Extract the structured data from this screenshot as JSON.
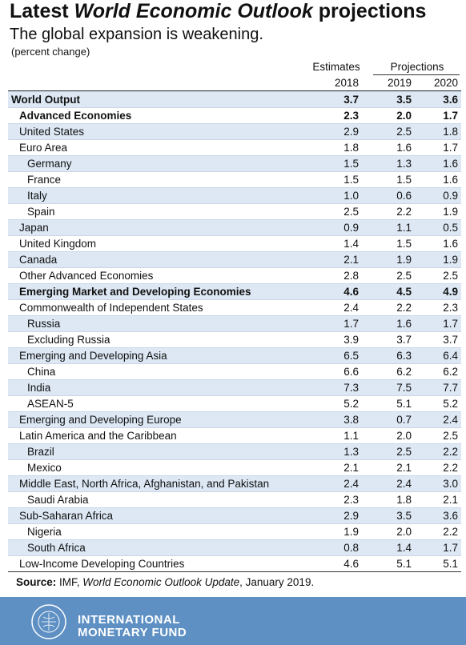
{
  "header": {
    "title": {
      "prefix": "Latest",
      "italic": "World Economic Outlook",
      "suffix": "projections"
    },
    "subtitle": "The global expansion is weakening.",
    "note": "(percent change)"
  },
  "table": {
    "group_headers": [
      "Estimates",
      "Projections"
    ],
    "years": [
      "2018",
      "2019",
      "2020"
    ],
    "rows": [
      {
        "label": "World Output",
        "indent": 0,
        "bold": true,
        "values": [
          "3.7",
          "3.5",
          "3.6"
        ]
      },
      {
        "label": "Advanced Economies",
        "indent": 1,
        "bold": true,
        "values": [
          "2.3",
          "2.0",
          "1.7"
        ]
      },
      {
        "label": "United States",
        "indent": 1,
        "bold": false,
        "values": [
          "2.9",
          "2.5",
          "1.8"
        ]
      },
      {
        "label": "Euro Area",
        "indent": 1,
        "bold": false,
        "values": [
          "1.8",
          "1.6",
          "1.7"
        ]
      },
      {
        "label": "Germany",
        "indent": 2,
        "bold": false,
        "values": [
          "1.5",
          "1.3",
          "1.6"
        ]
      },
      {
        "label": "France",
        "indent": 2,
        "bold": false,
        "values": [
          "1.5",
          "1.5",
          "1.6"
        ]
      },
      {
        "label": "Italy",
        "indent": 2,
        "bold": false,
        "values": [
          "1.0",
          "0.6",
          "0.9"
        ]
      },
      {
        "label": "Spain",
        "indent": 2,
        "bold": false,
        "values": [
          "2.5",
          "2.2",
          "1.9"
        ]
      },
      {
        "label": "Japan",
        "indent": 1,
        "bold": false,
        "values": [
          "0.9",
          "1.1",
          "0.5"
        ]
      },
      {
        "label": "United Kingdom",
        "indent": 1,
        "bold": false,
        "values": [
          "1.4",
          "1.5",
          "1.6"
        ]
      },
      {
        "label": "Canada",
        "indent": 1,
        "bold": false,
        "values": [
          "2.1",
          "1.9",
          "1.9"
        ]
      },
      {
        "label": "Other Advanced Economies",
        "indent": 1,
        "bold": false,
        "values": [
          "2.8",
          "2.5",
          "2.5"
        ]
      },
      {
        "label": "Emerging Market and Developing Economies",
        "indent": 1,
        "bold": true,
        "values": [
          "4.6",
          "4.5",
          "4.9"
        ]
      },
      {
        "label": "Commonwealth of Independent States",
        "indent": 1,
        "bold": false,
        "values": [
          "2.4",
          "2.2",
          "2.3"
        ]
      },
      {
        "label": "Russia",
        "indent": 2,
        "bold": false,
        "values": [
          "1.7",
          "1.6",
          "1.7"
        ]
      },
      {
        "label": "Excluding Russia",
        "indent": 2,
        "bold": false,
        "values": [
          "3.9",
          "3.7",
          "3.7"
        ]
      },
      {
        "label": "Emerging and Developing Asia",
        "indent": 1,
        "bold": false,
        "values": [
          "6.5",
          "6.3",
          "6.4"
        ]
      },
      {
        "label": "China",
        "indent": 2,
        "bold": false,
        "values": [
          "6.6",
          "6.2",
          "6.2"
        ]
      },
      {
        "label": "India",
        "indent": 2,
        "bold": false,
        "values": [
          "7.3",
          "7.5",
          "7.7"
        ]
      },
      {
        "label": "ASEAN-5",
        "indent": 2,
        "bold": false,
        "values": [
          "5.2",
          "5.1",
          "5.2"
        ]
      },
      {
        "label": "Emerging and Developing Europe",
        "indent": 1,
        "bold": false,
        "values": [
          "3.8",
          "0.7",
          "2.4"
        ]
      },
      {
        "label": "Latin America and the Caribbean",
        "indent": 1,
        "bold": false,
        "values": [
          "1.1",
          "2.0",
          "2.5"
        ]
      },
      {
        "label": "Brazil",
        "indent": 2,
        "bold": false,
        "values": [
          "1.3",
          "2.5",
          "2.2"
        ]
      },
      {
        "label": "Mexico",
        "indent": 2,
        "bold": false,
        "values": [
          "2.1",
          "2.1",
          "2.2"
        ]
      },
      {
        "label": "Middle East, North Africa, Afghanistan, and Pakistan",
        "indent": 1,
        "bold": false,
        "values": [
          "2.4",
          "2.4",
          "3.0"
        ]
      },
      {
        "label": "Saudi Arabia",
        "indent": 2,
        "bold": false,
        "values": [
          "2.3",
          "1.8",
          "2.1"
        ]
      },
      {
        "label": "Sub-Saharan Africa",
        "indent": 1,
        "bold": false,
        "values": [
          "2.9",
          "3.5",
          "3.6"
        ]
      },
      {
        "label": "Nigeria",
        "indent": 2,
        "bold": false,
        "values": [
          "1.9",
          "2.0",
          "2.2"
        ]
      },
      {
        "label": "South Africa",
        "indent": 2,
        "bold": false,
        "values": [
          "0.8",
          "1.4",
          "1.7"
        ]
      },
      {
        "label": "Low-Income Developing Countries",
        "indent": 1,
        "bold": false,
        "values": [
          "4.6",
          "5.1",
          "5.1"
        ]
      }
    ]
  },
  "source": {
    "label": "Source:",
    "org": "IMF,",
    "publication": "World Economic Outlook Update",
    "date": ", January 2019."
  },
  "footer": {
    "line1": "INTERNATIONAL",
    "line2": "MONETARY FUND"
  }
}
